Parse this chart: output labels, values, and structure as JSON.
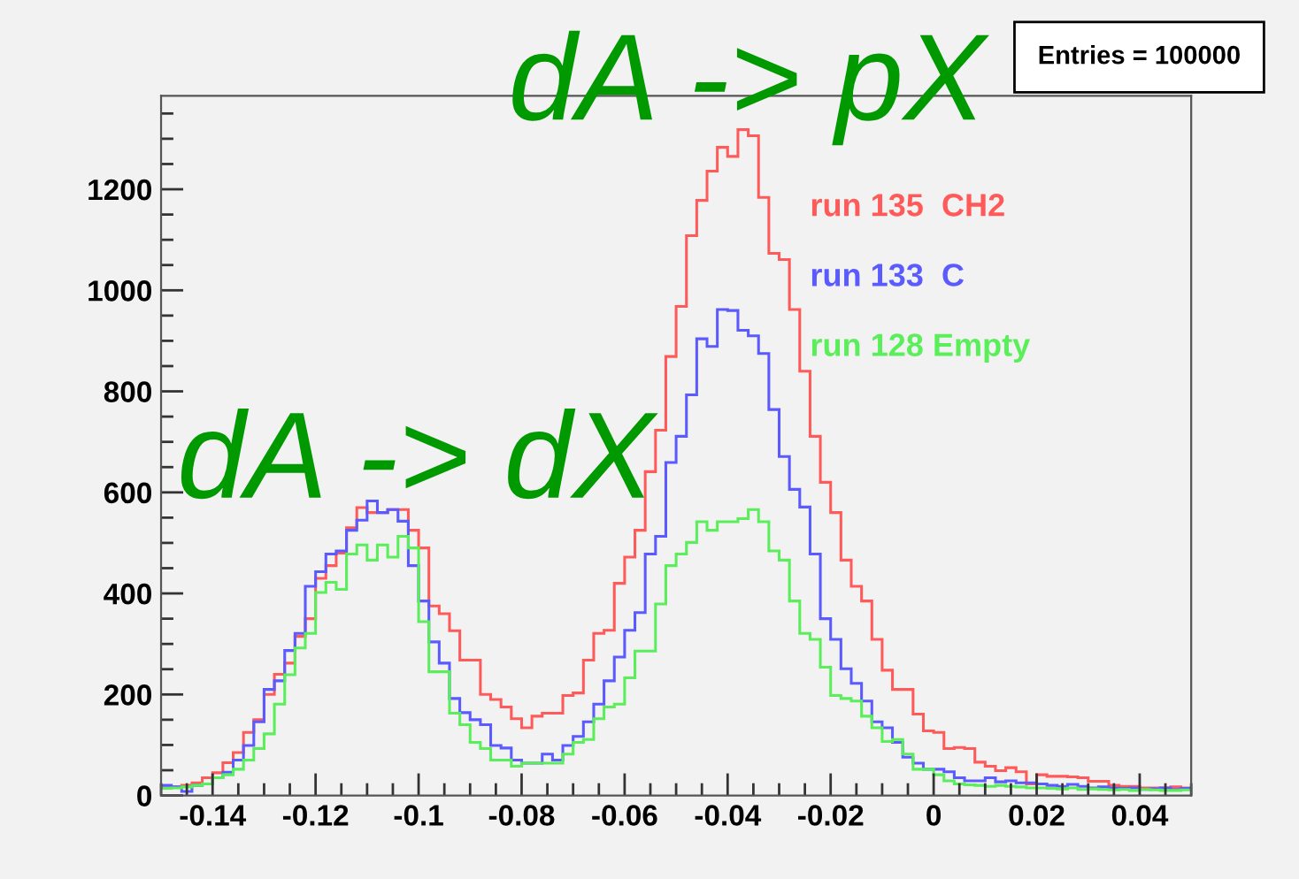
{
  "chart_data": {
    "type": "histogram",
    "bins": [
      -0.15,
      -0.148,
      -0.146,
      -0.144,
      -0.142,
      -0.14,
      -0.138,
      -0.136,
      -0.134,
      -0.132,
      -0.13,
      -0.128,
      -0.126,
      -0.124,
      -0.122,
      -0.12,
      -0.118,
      -0.116,
      -0.114,
      -0.112,
      -0.11,
      -0.108,
      -0.106,
      -0.104,
      -0.102,
      -0.1,
      -0.098,
      -0.096,
      -0.094,
      -0.092,
      -0.09,
      -0.088,
      -0.086,
      -0.084,
      -0.082,
      -0.08,
      -0.078,
      -0.076,
      -0.074,
      -0.072,
      -0.07,
      -0.068,
      -0.066,
      -0.064,
      -0.062,
      -0.06,
      -0.058,
      -0.056,
      -0.054,
      -0.052,
      -0.05,
      -0.048,
      -0.046,
      -0.044,
      -0.042,
      -0.04,
      -0.038,
      -0.036,
      -0.034,
      -0.032,
      -0.03,
      -0.028,
      -0.026,
      -0.024,
      -0.022,
      -0.02,
      -0.018,
      -0.016,
      -0.014,
      -0.012,
      -0.01,
      -0.008,
      -0.006,
      -0.004,
      -0.002,
      0,
      0.002,
      0.004,
      0.006,
      0.008,
      0.01,
      0.012,
      0.014,
      0.016,
      0.018,
      0.02,
      0.022,
      0.024,
      0.026,
      0.028,
      0.03,
      0.032,
      0.034,
      0.036,
      0.038,
      0.04,
      0.042,
      0.044,
      0.046,
      0.048,
      0.05
    ],
    "series": [
      {
        "name": "run 135  CH2",
        "color": "#ff5a5a",
        "values": [
          15,
          17,
          20,
          25,
          35,
          45,
          65,
          85,
          125,
          150,
          200,
          240,
          262,
          315,
          350,
          430,
          455,
          480,
          530,
          570,
          560,
          560,
          566,
          566,
          525,
          490,
          375,
          360,
          326,
          268,
          268,
          200,
          190,
          175,
          152,
          134,
          157,
          163,
          163,
          198,
          203,
          268,
          321,
          327,
          420,
          472,
          525,
          641,
          723,
          869,
          968,
          1108,
          1178,
          1236,
          1283,
          1265,
          1318,
          1306,
          1184,
          1073,
          1061,
          962,
          840,
          711,
          620,
          560,
          466,
          414,
          385,
          309,
          248,
          210,
          210,
          161,
          128,
          125,
          93,
          95,
          93,
          66,
          58,
          49,
          55,
          47,
          23,
          41,
          38,
          38,
          37,
          35,
          28,
          28,
          20,
          18,
          18,
          15,
          15,
          15,
          17,
          15
        ]
      },
      {
        "name": "run 133  C",
        "color": "#5a5aff",
        "values": [
          20,
          17,
          8,
          20,
          23,
          35,
          46,
          70,
          99,
          146,
          210,
          227,
          287,
          321,
          414,
          443,
          478,
          484,
          525,
          545,
          583,
          560,
          566,
          543,
          455,
          385,
          304,
          262,
          192,
          164,
          150,
          140,
          99,
          94,
          70,
          64,
          64,
          82,
          70,
          99,
          117,
          146,
          181,
          227,
          274,
          327,
          362,
          478,
          513,
          659,
          711,
          793,
          904,
          889,
          962,
          960,
          921,
          910,
          875,
          764,
          671,
          606,
          571,
          478,
          350,
          309,
          251,
          222,
          187,
          146,
          134,
          105,
          76,
          64,
          52,
          52,
          47,
          35,
          29,
          29,
          35,
          27,
          29,
          25,
          25,
          23,
          20,
          18,
          22,
          18,
          15,
          17,
          15,
          14,
          15,
          12,
          13,
          15,
          12,
          14
        ]
      },
      {
        "name": "run 128 Empty",
        "color": "#5aee5a",
        "values": [
          14,
          15,
          17,
          20,
          23,
          35,
          41,
          52,
          70,
          93,
          122,
          181,
          239,
          292,
          321,
          402,
          422,
          408,
          478,
          496,
          466,
          496,
          472,
          513,
          490,
          344,
          245,
          245,
          163,
          140,
          105,
          93,
          70,
          70,
          58,
          64,
          64,
          64,
          64,
          82,
          105,
          111,
          152,
          175,
          181,
          233,
          286,
          286,
          379,
          455,
          478,
          501,
          542,
          525,
          542,
          542,
          548,
          566,
          542,
          484,
          466,
          385,
          321,
          309,
          254,
          198,
          192,
          187,
          157,
          134,
          107,
          111,
          82,
          52,
          52,
          41,
          29,
          23,
          21,
          20,
          18,
          20,
          18,
          17,
          15,
          15,
          14,
          13,
          15,
          12,
          13,
          12,
          11,
          12,
          10,
          12,
          11,
          10,
          10,
          11
        ]
      }
    ],
    "xlim": [
      -0.15,
      0.05
    ],
    "ylim": [
      0,
      1385
    ],
    "xticks": [
      -0.14,
      -0.12,
      -0.1,
      -0.08,
      -0.06,
      -0.04,
      -0.02,
      0,
      0.02,
      0.04
    ],
    "yticks": [
      0,
      200,
      400,
      600,
      800,
      1000,
      1200
    ],
    "grid": false,
    "legend": "top right",
    "annotations": [
      "Entries = 100000",
      "dA -> pX",
      "dA -> dX"
    ]
  }
}
